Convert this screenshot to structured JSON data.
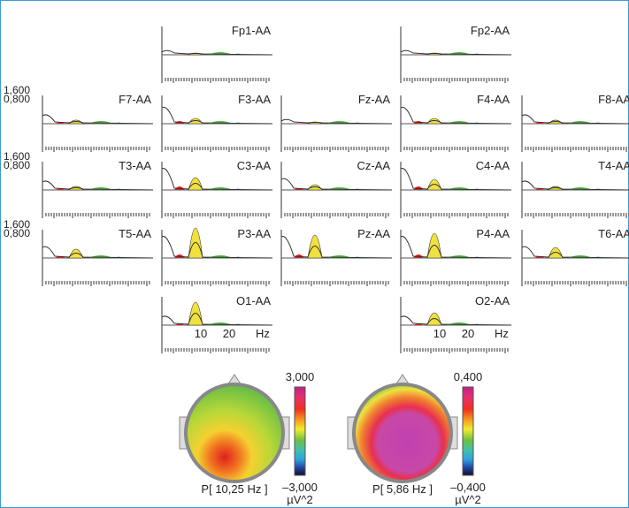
{
  "panels": [
    {
      "label": "Fp1-AA"
    },
    {
      "label": "Fp2-AA"
    },
    {
      "label": "F7-AA"
    },
    {
      "label": "F3-AA"
    },
    {
      "label": "Fz-AA"
    },
    {
      "label": "F4-AA"
    },
    {
      "label": "F8-AA"
    },
    {
      "label": "T3-AA"
    },
    {
      "label": "C3-AA"
    },
    {
      "label": "Cz-AA"
    },
    {
      "label": "C4-AA"
    },
    {
      "label": "T4-AA"
    },
    {
      "label": "T5-AA"
    },
    {
      "label": "P3-AA"
    },
    {
      "label": "Pz-AA"
    },
    {
      "label": "P4-AA"
    },
    {
      "label": "T6-AA"
    },
    {
      "label": "O1-AA"
    },
    {
      "label": "O2-AA"
    }
  ],
  "y_axis_labels": [
    "1,600",
    "0,800"
  ],
  "freq_axis": [
    "10",
    "20",
    "Hz"
  ],
  "maps": [
    {
      "label": "P[ 10,25 Hz ]",
      "scale_max": "3,000",
      "scale_min": "–3,000",
      "unit": "µV^2"
    },
    {
      "label": "P[ 5,86 Hz ]",
      "scale_max": "0,400",
      "scale_min": "–0,400",
      "unit": "µV^2"
    }
  ]
}
